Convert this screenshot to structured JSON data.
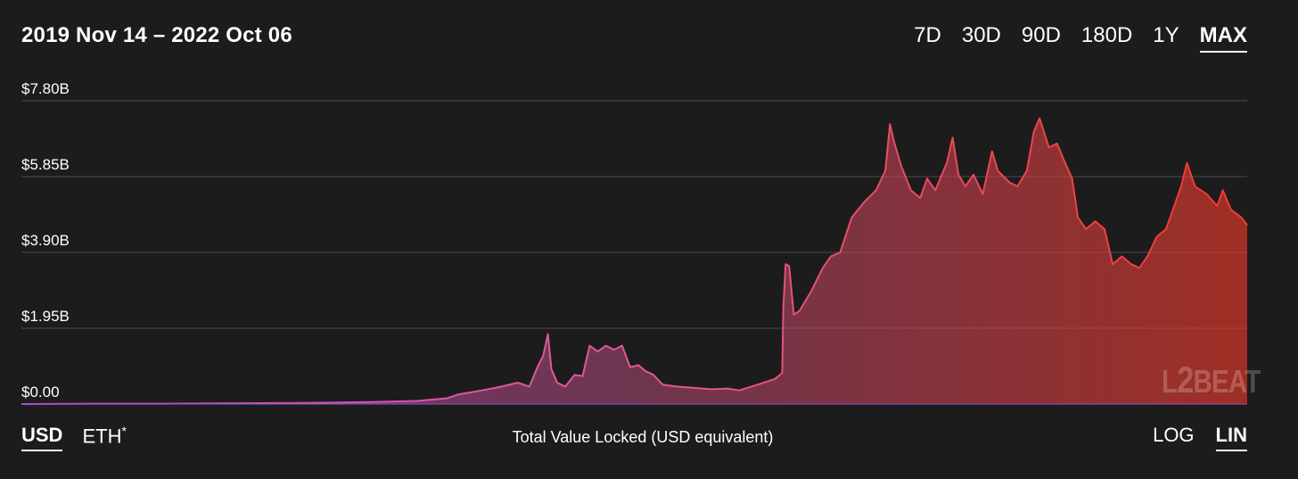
{
  "header": {
    "date_range": "2019 Nov 14 – 2022 Oct 06",
    "ranges": [
      {
        "label": "7D",
        "active": false
      },
      {
        "label": "30D",
        "active": false
      },
      {
        "label": "90D",
        "active": false
      },
      {
        "label": "180D",
        "active": false
      },
      {
        "label": "1Y",
        "active": false
      },
      {
        "label": "MAX",
        "active": true
      }
    ]
  },
  "footer": {
    "units": {
      "usd": "USD",
      "eth": "ETH",
      "eth_mark": "*",
      "active": "USD"
    },
    "caption": "Total Value Locked (USD equivalent)",
    "scales": {
      "log": "LOG",
      "lin": "LIN",
      "active": "LIN"
    }
  },
  "watermark": {
    "text_left": "L",
    "text_mid": "2",
    "text_right": "BEAT"
  },
  "colors": {
    "background": "#1c1c1c",
    "line_start": "#c64fd6",
    "line_end": "#f03a2a",
    "gridline": "#4d4d4d"
  },
  "chart_data": {
    "type": "area",
    "title": "",
    "xlabel": "",
    "ylabel": "",
    "x_range": [
      "2019-11-14",
      "2022-10-06"
    ],
    "ylim": [
      0,
      7.8
    ],
    "y_unit": "billion USD",
    "yticks": [
      {
        "value": 0,
        "label": "$0.00"
      },
      {
        "value": 1.95,
        "label": "$1.95B"
      },
      {
        "value": 3.9,
        "label": "$3.90B"
      },
      {
        "value": 5.85,
        "label": "$5.85B"
      },
      {
        "value": 7.8,
        "label": "$7.80B"
      }
    ],
    "grid": true,
    "legend": "none",
    "series": [
      {
        "points": [
          [
            "2019-11-14",
            0.0
          ],
          [
            "2020-01-15",
            0.01
          ],
          [
            "2020-03-15",
            0.01
          ],
          [
            "2020-05-15",
            0.02
          ],
          [
            "2020-07-15",
            0.03
          ],
          [
            "2020-09-10",
            0.05
          ],
          [
            "2020-10-20",
            0.08
          ],
          [
            "2020-11-15",
            0.15
          ],
          [
            "2020-11-25",
            0.25
          ],
          [
            "2020-12-15",
            0.35
          ],
          [
            "2021-01-01",
            0.45
          ],
          [
            "2021-01-15",
            0.55
          ],
          [
            "2021-01-25",
            0.45
          ],
          [
            "2021-02-01",
            0.95
          ],
          [
            "2021-02-06",
            1.25
          ],
          [
            "2021-02-10",
            1.8
          ],
          [
            "2021-02-13",
            0.9
          ],
          [
            "2021-02-18",
            0.55
          ],
          [
            "2021-02-25",
            0.45
          ],
          [
            "2021-03-05",
            0.75
          ],
          [
            "2021-03-12",
            0.72
          ],
          [
            "2021-03-18",
            1.5
          ],
          [
            "2021-03-25",
            1.35
          ],
          [
            "2021-04-01",
            1.5
          ],
          [
            "2021-04-08",
            1.4
          ],
          [
            "2021-04-15",
            1.5
          ],
          [
            "2021-04-22",
            0.95
          ],
          [
            "2021-04-29",
            1.0
          ],
          [
            "2021-05-05",
            0.85
          ],
          [
            "2021-05-12",
            0.75
          ],
          [
            "2021-05-20",
            0.5
          ],
          [
            "2021-06-01",
            0.45
          ],
          [
            "2021-06-15",
            0.42
          ],
          [
            "2021-07-01",
            0.38
          ],
          [
            "2021-07-15",
            0.4
          ],
          [
            "2021-07-25",
            0.35
          ],
          [
            "2021-08-10",
            0.5
          ],
          [
            "2021-08-25",
            0.65
          ],
          [
            "2021-08-31",
            0.8
          ],
          [
            "2021-09-01",
            2.5
          ],
          [
            "2021-09-03",
            3.6
          ],
          [
            "2021-09-06",
            3.55
          ],
          [
            "2021-09-10",
            2.3
          ],
          [
            "2021-09-15",
            2.4
          ],
          [
            "2021-09-25",
            2.9
          ],
          [
            "2021-10-05",
            3.5
          ],
          [
            "2021-10-12",
            3.8
          ],
          [
            "2021-10-20",
            3.9
          ],
          [
            "2021-10-30",
            4.8
          ],
          [
            "2021-11-10",
            5.2
          ],
          [
            "2021-11-20",
            5.5
          ],
          [
            "2021-11-28",
            6.0
          ],
          [
            "2021-12-02",
            7.2
          ],
          [
            "2021-12-05",
            6.8
          ],
          [
            "2021-12-12",
            6.1
          ],
          [
            "2021-12-20",
            5.5
          ],
          [
            "2021-12-28",
            5.3
          ],
          [
            "2022-01-03",
            5.8
          ],
          [
            "2022-01-10",
            5.5
          ],
          [
            "2022-01-20",
            6.2
          ],
          [
            "2022-01-25",
            6.85
          ],
          [
            "2022-01-30",
            5.9
          ],
          [
            "2022-02-05",
            5.6
          ],
          [
            "2022-02-12",
            5.9
          ],
          [
            "2022-02-20",
            5.4
          ],
          [
            "2022-02-28",
            6.5
          ],
          [
            "2022-03-05",
            6.0
          ],
          [
            "2022-03-15",
            5.7
          ],
          [
            "2022-03-22",
            5.6
          ],
          [
            "2022-03-30",
            6.0
          ],
          [
            "2022-04-05",
            7.0
          ],
          [
            "2022-04-10",
            7.35
          ],
          [
            "2022-04-18",
            6.6
          ],
          [
            "2022-04-25",
            6.7
          ],
          [
            "2022-05-02",
            6.2
          ],
          [
            "2022-05-08",
            5.8
          ],
          [
            "2022-05-13",
            4.8
          ],
          [
            "2022-05-20",
            4.5
          ],
          [
            "2022-05-28",
            4.7
          ],
          [
            "2022-06-05",
            4.5
          ],
          [
            "2022-06-12",
            3.6
          ],
          [
            "2022-06-20",
            3.8
          ],
          [
            "2022-06-28",
            3.6
          ],
          [
            "2022-07-05",
            3.5
          ],
          [
            "2022-07-12",
            3.8
          ],
          [
            "2022-07-20",
            4.3
          ],
          [
            "2022-07-28",
            4.5
          ],
          [
            "2022-08-03",
            5.0
          ],
          [
            "2022-08-10",
            5.6
          ],
          [
            "2022-08-15",
            6.2
          ],
          [
            "2022-08-22",
            5.6
          ],
          [
            "2022-09-01",
            5.4
          ],
          [
            "2022-09-10",
            5.1
          ],
          [
            "2022-09-15",
            5.5
          ],
          [
            "2022-09-22",
            5.0
          ],
          [
            "2022-10-01",
            4.8
          ],
          [
            "2022-10-06",
            4.6
          ]
        ]
      }
    ]
  }
}
